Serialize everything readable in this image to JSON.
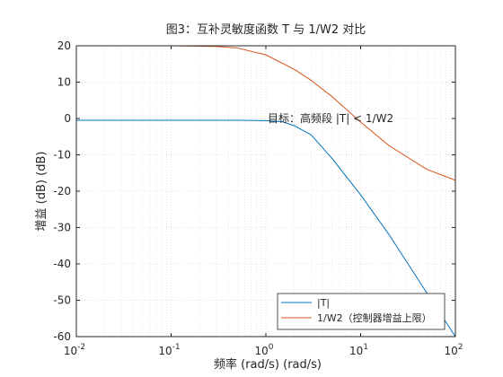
{
  "chart_data": {
    "type": "line",
    "title": "图3：互补灵敏度函数 T 与 1/W2 对比",
    "xlabel": "频率 (rad/s)  (rad/s)",
    "ylabel": "增益 (dB) (dB)",
    "xscale": "log",
    "xlim": [
      0.01,
      100
    ],
    "ylim": [
      -60,
      20
    ],
    "xticks": [
      0.01,
      0.1,
      1,
      10,
      100
    ],
    "xtick_bases": [
      "10",
      "10",
      "10",
      "10",
      "10"
    ],
    "xtick_exponents": [
      "-2",
      "-1",
      "0",
      "1",
      "2"
    ],
    "yticks": [
      20,
      10,
      0,
      -10,
      -20,
      -30,
      -40,
      -50,
      -60
    ],
    "ytick_labels": [
      "20",
      "10",
      "0",
      "-10",
      "-20",
      "-30",
      "-40",
      "-50",
      "-60"
    ],
    "grid": true,
    "legend_position": "bottom-right",
    "annotation": "目标：高频段 |T| < 1/W2",
    "series": [
      {
        "name": "|T|",
        "color": "#0072BD",
        "x": [
          0.01,
          0.1,
          0.5,
          1,
          1.5,
          2,
          3,
          5,
          10,
          20,
          50,
          100
        ],
        "y": [
          -0.5,
          -0.5,
          -0.5,
          -0.6,
          -0.9,
          -2.0,
          -4.5,
          -11,
          -21,
          -32,
          -48,
          -60
        ]
      },
      {
        "name": "1/W2（控制器增益上限）",
        "color": "#D95319",
        "x": [
          0.01,
          0.1,
          0.3,
          0.5,
          1,
          2,
          3,
          5,
          10,
          20,
          50,
          100
        ],
        "y": [
          20,
          20,
          19.8,
          19.4,
          17.5,
          13.5,
          10.5,
          6,
          -1,
          -7.5,
          -14,
          -17
        ]
      }
    ]
  }
}
